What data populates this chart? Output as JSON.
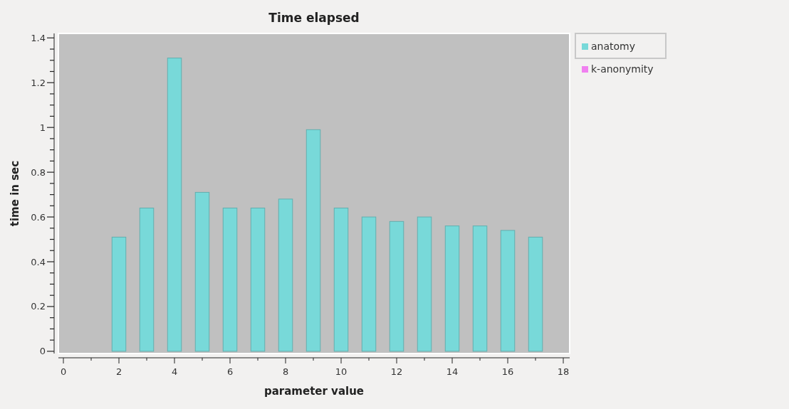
{
  "chart_data": {
    "type": "bar",
    "title": "Time elapsed",
    "xlabel": "parameter value",
    "ylabel": "time in sec",
    "x": [
      2,
      3,
      4,
      5,
      6,
      7,
      8,
      9,
      10,
      11,
      12,
      13,
      14,
      15,
      16,
      17
    ],
    "series": [
      {
        "name": "anatomy",
        "color": "#78d9d9",
        "values": [
          0.51,
          0.64,
          1.31,
          0.71,
          0.64,
          0.64,
          0.68,
          0.99,
          0.64,
          0.6,
          0.58,
          0.6,
          0.56,
          0.56,
          0.54,
          0.51
        ]
      },
      {
        "name": "k-anonymity",
        "color": "#f080f0",
        "values": [
          null,
          null,
          null,
          null,
          null,
          null,
          null,
          null,
          null,
          null,
          null,
          null,
          null,
          null,
          null,
          null
        ]
      }
    ],
    "xlim": [
      -0.18,
      18.23
    ],
    "xticks": [
      0,
      {
        "value": 1,
        "label": null
      },
      2,
      {
        "value": 3,
        "label": null
      },
      4,
      {
        "value": 5,
        "label": null
      },
      6,
      {
        "value": 7,
        "label": null
      },
      8,
      {
        "value": 9,
        "label": null
      },
      10,
      {
        "value": 11,
        "label": null
      },
      12,
      {
        "value": 13,
        "label": null
      },
      14,
      {
        "value": 15,
        "label": null
      },
      16,
      {
        "value": 17,
        "label": null
      },
      18
    ],
    "ylim": [
      -0.01,
      1.42
    ],
    "yticks": [
      0,
      {
        "value": 0.05,
        "label": null
      },
      {
        "value": 0.1,
        "label": null
      },
      {
        "value": 0.15,
        "label": null
      },
      0.2,
      {
        "value": 0.25,
        "label": null
      },
      {
        "value": 0.3,
        "label": null
      },
      {
        "value": 0.35,
        "label": null
      },
      0.4,
      {
        "value": 0.45,
        "label": null
      },
      {
        "value": 0.5,
        "label": null
      },
      {
        "value": 0.55,
        "label": null
      },
      0.6,
      {
        "value": 0.65,
        "label": null
      },
      {
        "value": 0.7,
        "label": null
      },
      {
        "value": 0.75,
        "label": null
      },
      0.8,
      {
        "value": 0.85,
        "label": null
      },
      {
        "value": 0.9,
        "label": null
      },
      {
        "value": 0.95,
        "label": null
      },
      1,
      {
        "value": 1.05,
        "label": null
      },
      {
        "value": 1.1,
        "label": null
      },
      {
        "value": 1.15,
        "label": null
      },
      1.2,
      {
        "value": 1.25,
        "label": null
      },
      {
        "value": 1.3,
        "label": null
      },
      {
        "value": 1.35,
        "label": null
      },
      1.4
    ],
    "legend": "top right",
    "grid": false
  }
}
